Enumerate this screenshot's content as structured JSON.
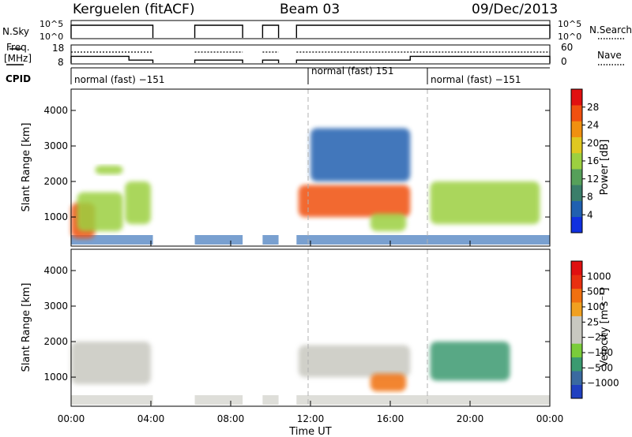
{
  "header": {
    "station": "Kerguelen (fitACF)",
    "beam": "Beam 03",
    "date": "09/Dec/2013"
  },
  "strip_labels": {
    "nsky": "N.Sky",
    "freq_line1": "Freq.",
    "freq_line2": "[MHz]",
    "cpid": "CPID",
    "nsearch": "N.Search",
    "nave": "Nave"
  },
  "strip_ticks": {
    "nsky_top": "10^5",
    "nsky_bottom": "10^0",
    "freq_top": "18",
    "freq_bottom": "8",
    "nave_top": "60",
    "nave_bottom": "0"
  },
  "cpid_segments": [
    {
      "label": "normal (fast) −151",
      "start_hour": 0
    },
    {
      "label": "normal (fast) 151",
      "start_hour": 12
    },
    {
      "label": "normal (fast) −151",
      "start_hour": 18
    }
  ],
  "power_panel": {
    "ylabel": "Slant Range [km]",
    "yticks": [
      "4000",
      "3000",
      "2000",
      "1000"
    ],
    "colorbar_label": "Power [dB]",
    "colorbar_ticks": [
      "28",
      "24",
      "20",
      "16",
      "12",
      "8",
      "4"
    ],
    "colorbar_colors": [
      "#1030e0",
      "#2060b0",
      "#3a7e6a",
      "#56a05a",
      "#9cd040",
      "#e0c820",
      "#f09010",
      "#f05010",
      "#e01010"
    ]
  },
  "velocity_panel": {
    "ylabel": "Slant Range [km]",
    "yticks": [
      "4000",
      "3000",
      "2000",
      "1000"
    ],
    "colorbar_label": "Velocity [m s⁻¹]",
    "colorbar_ticks": [
      "1000",
      "500",
      "100",
      "25",
      "−25",
      "−100",
      "−500",
      "−1000"
    ],
    "colorbar_colors": [
      "#2040c0",
      "#3a6aa0",
      "#3a9a70",
      "#7acc3a",
      "#c8c8c0",
      "#c8c8c0",
      "#f0a020",
      "#f07010",
      "#e83010",
      "#e01010"
    ]
  },
  "xaxis": {
    "ticks": [
      "00:00",
      "04:00",
      "08:00",
      "12:00",
      "16:00",
      "20:00",
      "00:00"
    ],
    "label": "Time UT"
  },
  "chart_data": {
    "type": "heatmap",
    "x_unit": "hours UT",
    "xlim": [
      0,
      24
    ],
    "ylim_km": [
      180,
      4600
    ],
    "cpid_boundaries_hour": [
      12,
      18
    ],
    "data_intervals_hour": [
      [
        0,
        4.1
      ],
      [
        6.2,
        8.6
      ],
      [
        9.6,
        10.4
      ],
      [
        11.3,
        24
      ]
    ],
    "frequency_mhz": [
      {
        "from": 0,
        "to": 2.9,
        "value": 12
      },
      {
        "from": 2.9,
        "to": 17,
        "value": 10
      },
      {
        "from": 17,
        "to": 24,
        "value": 12
      }
    ],
    "power_regions": [
      {
        "x": [
          0.0,
          1.2
        ],
        "y": [
          400,
          1400
        ],
        "level": "high"
      },
      {
        "x": [
          0.3,
          2.6
        ],
        "y": [
          600,
          1700
        ],
        "level": "medium"
      },
      {
        "x": [
          1.2,
          2.6
        ],
        "y": [
          2200,
          2450
        ],
        "level": "medium"
      },
      {
        "x": [
          2.7,
          4.0
        ],
        "y": [
          800,
          2000
        ],
        "level": "medium"
      },
      {
        "x": [
          11.4,
          17.0
        ],
        "y": [
          1000,
          1900
        ],
        "level": "high"
      },
      {
        "x": [
          15.0,
          16.8
        ],
        "y": [
          600,
          1100
        ],
        "level": "medium"
      },
      {
        "x": [
          18.0,
          23.5
        ],
        "y": [
          800,
          2000
        ],
        "level": "medium"
      },
      {
        "x": [
          12.0,
          17.0
        ],
        "y": [
          2000,
          3500
        ],
        "level": "low"
      }
    ],
    "velocity_regions": [
      {
        "x": [
          0.0,
          4.0
        ],
        "y": [
          800,
          2000
        ],
        "class": "near-zero"
      },
      {
        "x": [
          11.4,
          17.0
        ],
        "y": [
          1000,
          1900
        ],
        "class": "near-zero"
      },
      {
        "x": [
          15.0,
          16.8
        ],
        "y": [
          600,
          1100
        ],
        "class": "negative"
      },
      {
        "x": [
          18.0,
          22.0
        ],
        "y": [
          900,
          2000
        ],
        "class": "mixed"
      }
    ]
  }
}
